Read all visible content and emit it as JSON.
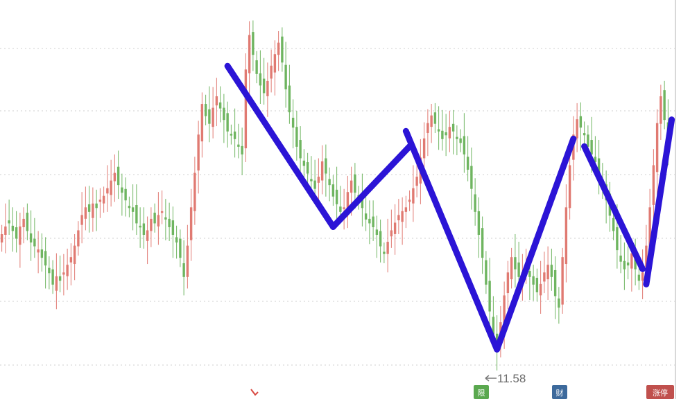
{
  "chart_data": {
    "type": "candlestick",
    "title": "",
    "xlabel": "",
    "ylabel": "",
    "grid": true,
    "colors": {
      "up": "#e07a72",
      "down": "#6fb560",
      "trend": "#2b14d6"
    },
    "closes": [
      14.9,
      15.1,
      15.2,
      15.0,
      14.8,
      15.1,
      15.3,
      15.0,
      14.7,
      14.6,
      14.5,
      14.3,
      14.1,
      13.9,
      13.6,
      13.8,
      13.7,
      13.9,
      14.1,
      14.3,
      14.6,
      15.0,
      15.4,
      15.6,
      15.5,
      15.7,
      15.6,
      15.8,
      15.9,
      16.1,
      16.3,
      16.5,
      16.2,
      16.0,
      15.8,
      15.6,
      15.5,
      15.2,
      15.1,
      14.9,
      15.0,
      15.3,
      15.2,
      15.4,
      15.5,
      15.3,
      15.1,
      14.9,
      14.7,
      14.3,
      13.8,
      14.6,
      15.6,
      16.5,
      17.5,
      18.3,
      18.0,
      17.8,
      18.2,
      18.5,
      18.2,
      17.9,
      17.6,
      17.5,
      17.4,
      17.2,
      17.0,
      19.2,
      20.1,
      19.6,
      19.1,
      18.8,
      18.6,
      18.9,
      19.3,
      19.6,
      19.9,
      19.4,
      18.7,
      18.1,
      17.7,
      17.2,
      16.9,
      16.7,
      16.5,
      16.3,
      16.1,
      16.4,
      16.8,
      16.5,
      16.2,
      15.9,
      15.7,
      15.5,
      15.6,
      16.0,
      16.3,
      16.0,
      15.8,
      15.6,
      15.3,
      15.2,
      15.1,
      14.9,
      14.6,
      14.4,
      14.7,
      15.0,
      15.2,
      15.4,
      15.5,
      15.6,
      15.8,
      16.1,
      16.4,
      16.9,
      17.4,
      17.8,
      18.0,
      17.8,
      17.6,
      17.4,
      17.5,
      17.7,
      17.6,
      17.4,
      17.3,
      17.0,
      16.6,
      16.1,
      15.5,
      14.9,
      14.3,
      13.6,
      12.9,
      12.3,
      11.9,
      12.6,
      13.3,
      13.9,
      14.3,
      14.0,
      13.8,
      13.9,
      14.1,
      13.8,
      13.6,
      13.4,
      13.6,
      13.9,
      14.1,
      13.8,
      13.3,
      13.0,
      14.3,
      15.6,
      16.7,
      17.5,
      17.9,
      17.7,
      17.5,
      17.2,
      17.0,
      16.8,
      16.5,
      16.2,
      15.8,
      15.4,
      15.0,
      14.5,
      14.2,
      14.0,
      14.1,
      14.4,
      14.0,
      13.7,
      13.9,
      14.6,
      15.6,
      16.7,
      17.8,
      18.5,
      17.9,
      17.2
    ],
    "low_label": "11.58",
    "bottom_markers": [
      {
        "text": "限",
        "color": "#5aa84f",
        "position": "below-low"
      },
      {
        "text": "财",
        "color": "#3d6a9c",
        "position": "after-peak"
      },
      {
        "text": "涨停",
        "color": "#c0504d",
        "position": "right-edge"
      }
    ],
    "trend_segments": [
      [
        [
          62,
          19.3
        ],
        [
          91,
          15.1
        ]
      ],
      [
        [
          91,
          15.1
        ],
        [
          112,
          17.2
        ]
      ],
      [
        [
          111,
          17.6
        ],
        [
          136,
          11.9
        ]
      ],
      [
        [
          136,
          11.9
        ],
        [
          157,
          17.4
        ]
      ],
      [
        [
          160,
          17.2
        ],
        [
          176,
          14.0
        ]
      ],
      [
        [
          177,
          13.6
        ],
        [
          184,
          17.9
        ]
      ]
    ]
  }
}
